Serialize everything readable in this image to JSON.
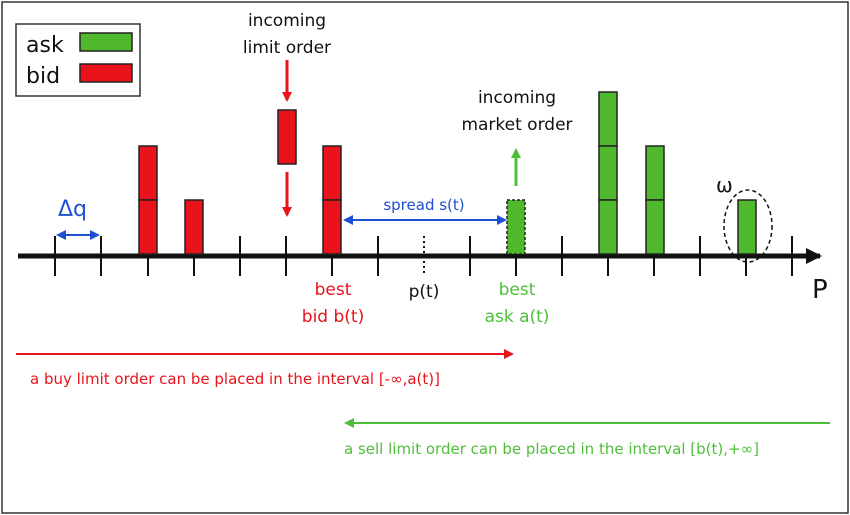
{
  "legend": {
    "ask_label": "ask",
    "bid_label": "bid",
    "ask_color": "#4fb82d",
    "bid_color": "#e8131b"
  },
  "axis_label": "P",
  "delta_q_label": "Δq",
  "omega_label": "ω",
  "incoming_limit_order": [
    "incoming",
    "limit order"
  ],
  "incoming_market_order": [
    "incoming",
    "market order"
  ],
  "spread_label": "spread s(t)",
  "best_bid": [
    "best",
    "bid b(t)"
  ],
  "mid_price": "p(t)",
  "best_ask": [
    "best",
    "ask a(t)"
  ],
  "buy_interval_text": "a buy limit order can be placed in the interval [-∞,a(t)]",
  "sell_interval_text": "a sell limit order can be placed in the interval [b(t),+∞]",
  "colors": {
    "red": "#e8131b",
    "green": "#4fb82d",
    "blue": "#1f4fd1"
  }
}
